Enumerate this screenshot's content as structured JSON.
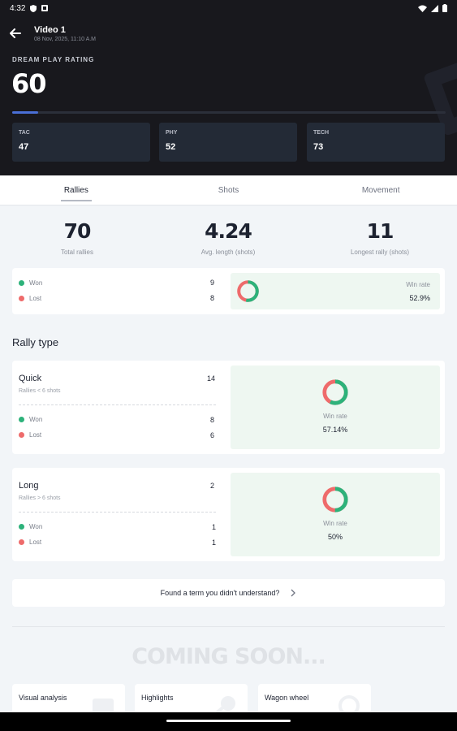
{
  "status_bar": {
    "time": "4:32"
  },
  "header": {
    "title": "Video 1",
    "date": "08 Nov, 2025, 11:10 A.M",
    "rating_label": "DREAM PLAY RATING",
    "rating_value": "60",
    "rating_progress_pct": 6,
    "stats": [
      {
        "label": "TAC",
        "value": "47"
      },
      {
        "label": "PHY",
        "value": "52"
      },
      {
        "label": "TECH",
        "value": "73"
      }
    ]
  },
  "tabs": [
    {
      "label": "Rallies",
      "active": true
    },
    {
      "label": "Shots",
      "active": false
    },
    {
      "label": "Movement",
      "active": false
    }
  ],
  "summary": [
    {
      "value": "70",
      "caption": "Total rallies"
    },
    {
      "value": "4.24",
      "caption": "Avg. length (shots)"
    },
    {
      "value": "11",
      "caption": "Longest rally (shots)"
    }
  ],
  "overall": {
    "won_label": "Won",
    "won_count": "9",
    "lost_label": "Lost",
    "lost_count": "8",
    "win_rate_label": "Win rate",
    "win_rate": "52.9%",
    "win_fraction": 0.529
  },
  "rally_type_title": "Rally type",
  "rally_types": [
    {
      "title": "Quick",
      "subtitle": "Rallies < 6 shots",
      "count": "14",
      "won_label": "Won",
      "won_count": "8",
      "lost_label": "Lost",
      "lost_count": "6",
      "win_rate_label": "Win rate",
      "win_rate": "57.14%",
      "win_fraction": 0.5714
    },
    {
      "title": "Long",
      "subtitle": "Rallies > 6 shots",
      "count": "2",
      "won_label": "Won",
      "won_count": "1",
      "lost_label": "Lost",
      "lost_count": "1",
      "win_rate_label": "Win rate",
      "win_rate": "50%",
      "win_fraction": 0.5
    }
  ],
  "term_prompt": "Found a term you didn't understand?",
  "coming_soon": "COMING SOON...",
  "coming_cards": [
    {
      "label": "Visual analysis"
    },
    {
      "label": "Highlights"
    },
    {
      "label": "Wagon wheel"
    }
  ],
  "colors": {
    "won": "#2db27a",
    "lost": "#ee6b6b",
    "header_bg": "#18181d",
    "accent": "#4a6fd6"
  }
}
